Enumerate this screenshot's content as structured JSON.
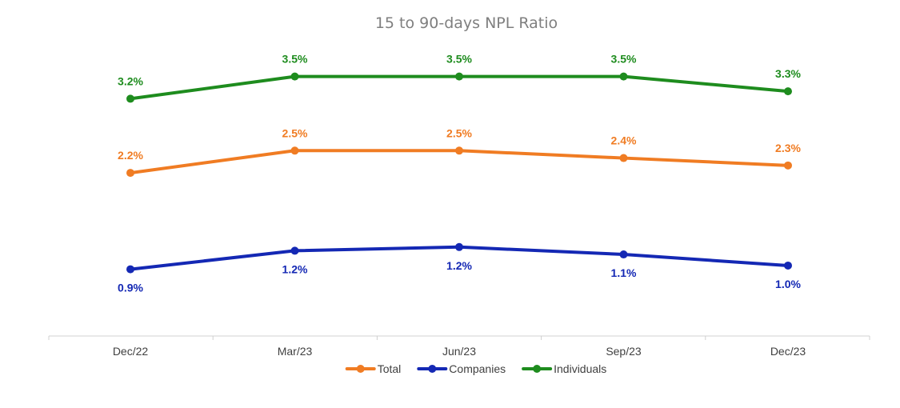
{
  "chart_data": {
    "type": "line",
    "title": "15 to 90-days NPL Ratio",
    "categories": [
      "Dec/22",
      "Mar/23",
      "Jun/23",
      "Sep/23",
      "Dec/23"
    ],
    "ylim": [
      0,
      4.1
    ],
    "grid": false,
    "legend_position": "bottom",
    "series": [
      {
        "name": "Total",
        "color": "#f07c23",
        "values": [
          2.2,
          2.5,
          2.5,
          2.4,
          2.3
        ],
        "labels": [
          "2.2%",
          "2.5%",
          "2.5%",
          "2.4%",
          "2.3%"
        ],
        "label_position": "above"
      },
      {
        "name": "Companies",
        "color": "#1428b4",
        "values": [
          0.9,
          1.15,
          1.2,
          1.1,
          0.95
        ],
        "labels": [
          "0.9%",
          "1.2%",
          "1.2%",
          "1.1%",
          "1.0%"
        ],
        "label_position": "below"
      },
      {
        "name": "Individuals",
        "color": "#1e8c1e",
        "values": [
          3.2,
          3.5,
          3.5,
          3.5,
          3.3
        ],
        "labels": [
          "3.2%",
          "3.5%",
          "3.5%",
          "3.5%",
          "3.3%"
        ],
        "label_position": "above"
      }
    ]
  }
}
